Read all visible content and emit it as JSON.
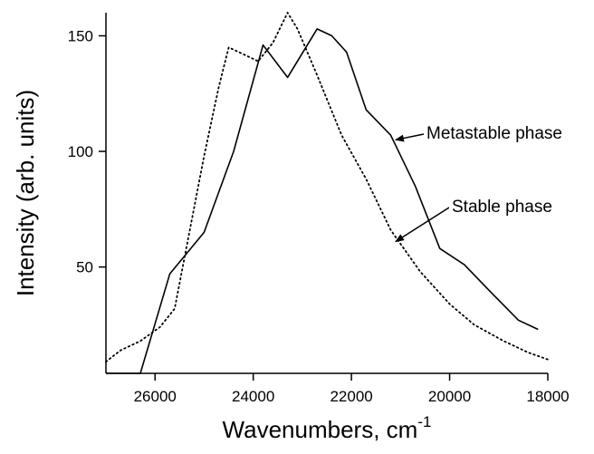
{
  "chart_data": {
    "type": "line",
    "title": "",
    "xlabel": "Wavenumbers, cm",
    "xlabel_superscript": "-1",
    "ylabel": "Intensity (arb. units)",
    "xlim": [
      27000,
      18000
    ],
    "ylim": [
      4,
      160
    ],
    "x_reversed": true,
    "grid": false,
    "x_ticks": [
      {
        "value": 26000,
        "label": "26000"
      },
      {
        "value": 24000,
        "label": "24000"
      },
      {
        "value": 22000,
        "label": "22000"
      },
      {
        "value": 20000,
        "label": "20000"
      },
      {
        "value": 18000,
        "label": "18000"
      }
    ],
    "y_ticks": [
      {
        "value": 50,
        "label": "50"
      },
      {
        "value": 100,
        "label": "100"
      },
      {
        "value": 150,
        "label": "150"
      }
    ],
    "series": [
      {
        "name": "Metastable phase",
        "style": "solid",
        "color": "#000000",
        "x": [
          27000,
          26300,
          25700,
          25000,
          24400,
          23800,
          23300,
          22700,
          22400,
          22100,
          21700,
          21200,
          20700,
          20200,
          19700,
          19200,
          18600,
          18200
        ],
        "y": [
          4,
          4,
          47,
          65,
          100,
          146,
          132,
          153,
          150,
          143,
          118,
          107,
          85,
          58,
          51,
          40,
          27,
          23
        ]
      },
      {
        "name": "Stable phase",
        "style": "dotted",
        "color": "#000000",
        "x": [
          27000,
          26700,
          26300,
          25900,
          25600,
          25000,
          24700,
          24500,
          24200,
          23900,
          23600,
          23300,
          23100,
          22700,
          22200,
          21700,
          21200,
          20600,
          20000,
          19500,
          18900,
          18400,
          18000
        ],
        "y": [
          9,
          14,
          18,
          24,
          32,
          98,
          128,
          145,
          142,
          139,
          147,
          160,
          153,
          133,
          107,
          88,
          66,
          48,
          34,
          25,
          18,
          13,
          10
        ]
      }
    ],
    "annotations": [
      {
        "text": "Metastable phase",
        "series": "Metastable phase",
        "arrow_to": {
          "x": 21100,
          "y": 105
        }
      },
      {
        "text": "Stable phase",
        "series": "Stable phase",
        "arrow_to": {
          "x": 21100,
          "y": 61
        }
      }
    ]
  }
}
